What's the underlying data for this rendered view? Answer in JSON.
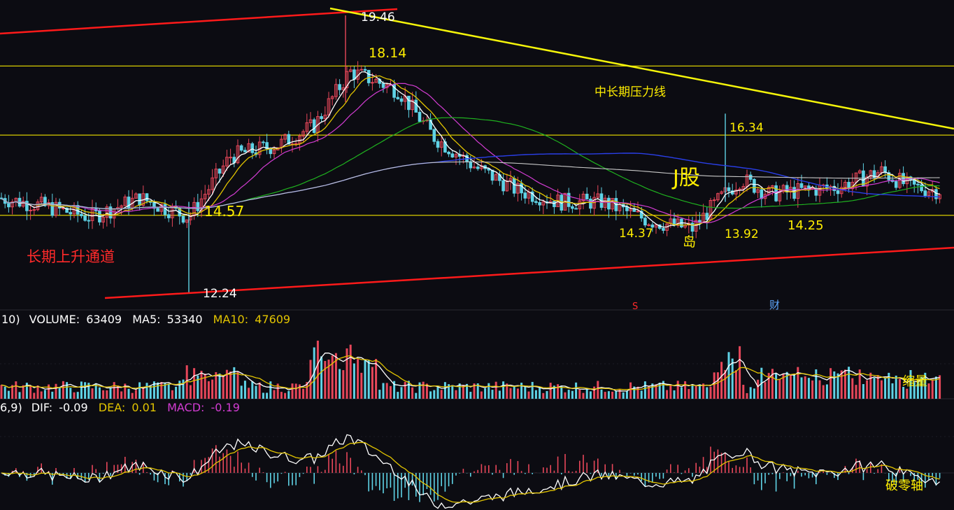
{
  "colors": {
    "background": "#0c0c12",
    "up_candle": "#e8475a",
    "down_candle": "#5fd3e6",
    "trend_red": "#ff1a1a",
    "trend_yellow": "#f5f50a",
    "hline_yellow": "#d8cc00",
    "ma5": "#ffffff",
    "ma10": "#e2c400",
    "ma20": "#d23cd2",
    "ma60": "#1fb11f",
    "ma120": "#2a3fe8",
    "ma250": "#c8c8c8",
    "annotation_yellow": "#ffee00",
    "annotation_red": "#ff2a2a",
    "macd_dif": "#ffffff",
    "macd_dea": "#e2c400",
    "macd_label": "#d23cd2",
    "grid": "#2a2a33"
  },
  "price_labels": {
    "high": "19.46",
    "l1": "18.14",
    "l2": "16.34",
    "l3": "14.57",
    "l4": "14.37",
    "l5": "13.92",
    "l6": "14.25",
    "low": "12.24"
  },
  "annotations": {
    "resistance": "中长期压力线",
    "channel": "长期上升通道",
    "j_stock": "J股",
    "island": "岛",
    "shrink_volume": "缩量",
    "break_zero": "破零轴",
    "marker_s": "S",
    "marker_cai": "财"
  },
  "volume_header": {
    "prefix": "10)",
    "volume_label": "VOLUME:",
    "volume_value": "63409",
    "ma5_label": "MA5:",
    "ma5_value": "53340",
    "ma10_label": "MA10:",
    "ma10_value": "47609"
  },
  "macd_header": {
    "prefix": "6,9)",
    "dif_label": "DIF:",
    "dif_value": "-0.09",
    "dea_label": "DEA:",
    "dea_value": "0.01",
    "macd_label": "MACD:",
    "macd_value": "-0.19"
  },
  "chart_data": {
    "type": "candlestick",
    "price_axis_key_levels": [
      12.24,
      13.92,
      14.25,
      14.37,
      14.57,
      16.34,
      18.14,
      19.46
    ],
    "horizontal_levels": [
      18.14,
      16.34,
      14.25
    ],
    "ma_path": [
      [
        0,
        14.7
      ],
      [
        60,
        14.5
      ],
      [
        130,
        14.2
      ],
      [
        200,
        14.7
      ],
      [
        270,
        14.2
      ],
      [
        330,
        15.8
      ],
      [
        400,
        16.1
      ],
      [
        450,
        16.6
      ],
      [
        500,
        18.0
      ],
      [
        530,
        17.8
      ],
      [
        570,
        17.5
      ],
      [
        620,
        16.3
      ],
      [
        680,
        15.5
      ],
      [
        740,
        14.9
      ],
      [
        800,
        14.6
      ],
      [
        860,
        14.6
      ],
      [
        930,
        14.1
      ],
      [
        990,
        13.9
      ],
      [
        1030,
        14.7
      ],
      [
        1060,
        15.2
      ],
      [
        1100,
        14.8
      ],
      [
        1150,
        14.9
      ],
      [
        1200,
        15.0
      ],
      [
        1260,
        15.4
      ],
      [
        1300,
        15.0
      ],
      [
        1340,
        14.9
      ]
    ],
    "volume": {
      "current": 63409,
      "ma5": 53340,
      "ma10": 47609
    },
    "macd": {
      "dif": -0.09,
      "dea": 0.01,
      "macd": -0.19
    }
  }
}
